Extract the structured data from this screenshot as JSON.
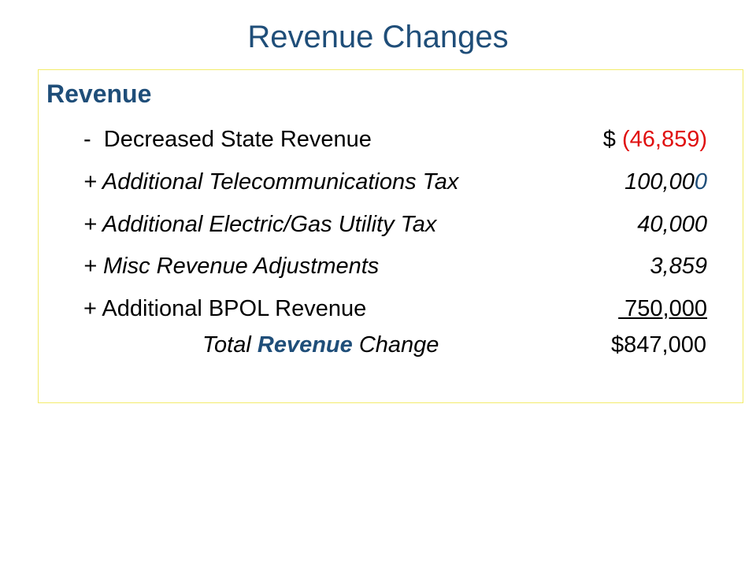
{
  "slide": {
    "title": "Revenue Changes"
  },
  "box": {
    "heading": "Revenue",
    "items": [
      {
        "sign": "-  ",
        "label": "Decreased State Revenue",
        "amount_prefix": "$ ",
        "amount": "(46,859)",
        "amount_color": "#e01010"
      },
      {
        "sign": "+ ",
        "label": "Additional Telecommunications Tax",
        "amount": "100,00",
        "amount_tail": "0",
        "tail_color": "#1f4e79"
      },
      {
        "sign": "+ ",
        "label": "Additional Electric/Gas Utility Tax",
        "amount": "40,000"
      },
      {
        "sign": "+ ",
        "label": "Misc Revenue Adjustments",
        "amount": "3,859"
      },
      {
        "sign": "+ ",
        "label": "Additional BPOL Revenue",
        "amount": " 750,000"
      }
    ],
    "total": {
      "prefix": "Total ",
      "keyword": "Revenue",
      "suffix": " Change",
      "amount": "$847,000"
    }
  },
  "colors": {
    "title": "#1f4e79",
    "negative": "#e01010",
    "box_border": "#f3ec6b"
  }
}
